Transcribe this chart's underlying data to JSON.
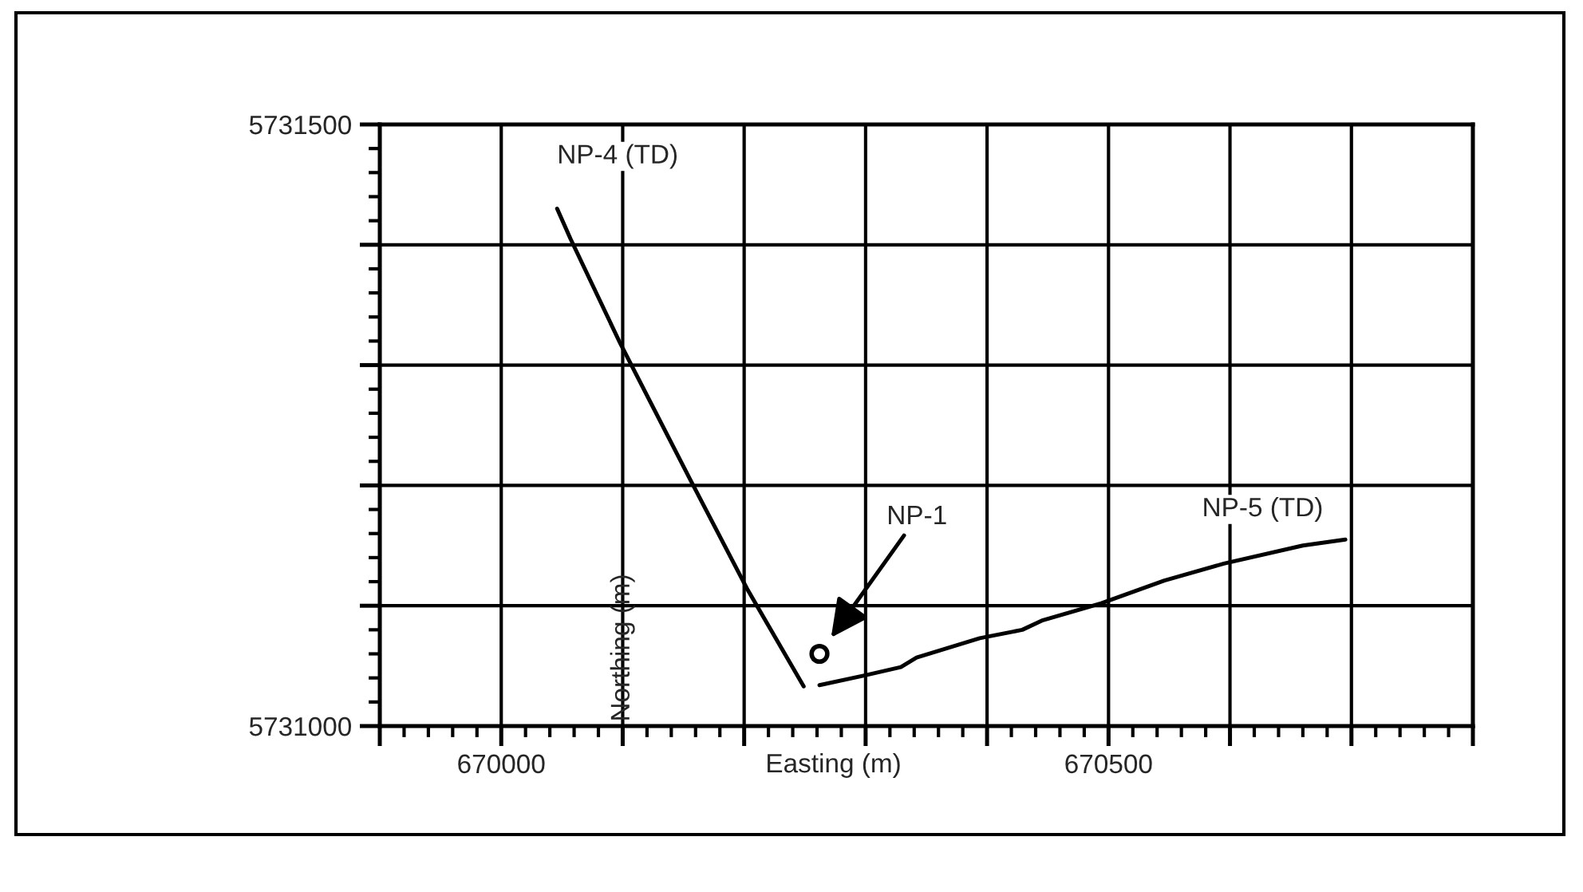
{
  "chart_data": {
    "type": "line",
    "xlabel": "Easting (m)",
    "ylabel": "Northing (m)",
    "series": [
      {
        "name": "NP-4 (TD)",
        "color": "#000000",
        "x": [
          670046,
          670057,
          670098,
          670155,
          670203,
          670249
        ],
        "values": [
          5731430,
          5731405,
          5731318,
          5731206,
          5731113,
          5731033
        ]
      },
      {
        "name": "NP-5 (TD)",
        "color": "#000000",
        "x": [
          670262,
          670299,
          670329,
          670342,
          670394,
          670429,
          670446,
          670494,
          670546,
          670595,
          670660,
          670695
        ],
        "values": [
          5731034,
          5731042,
          5731049,
          5731057,
          5731073,
          5731080,
          5731088,
          5731102,
          5731121,
          5731135,
          5731150,
          5731155
        ]
      },
      {
        "name": "NP-1",
        "type": "scatter",
        "marker": "circle",
        "color": "#000000",
        "x": [
          670262
        ],
        "values": [
          5731060
        ]
      }
    ],
    "xlim": [
      669900,
      670800
    ],
    "xticks": [
      {
        "value": 669900,
        "label": null
      },
      670000,
      {
        "value": 670100,
        "label": null
      },
      {
        "value": 670200,
        "label": null
      },
      {
        "value": 670300,
        "label": null
      },
      {
        "value": 670400,
        "label": null
      },
      670500,
      {
        "value": 670600,
        "label": null
      },
      {
        "value": 670700,
        "label": null
      },
      {
        "value": 670800,
        "label": null
      }
    ],
    "ylim": [
      5731000,
      5731500
    ],
    "yticks": [
      5731000,
      {
        "value": 5731100,
        "label": null
      },
      {
        "value": 5731200,
        "label": null
      },
      {
        "value": 5731300,
        "label": null
      },
      {
        "value": 5731400,
        "label": null
      },
      5731500
    ],
    "grid": true,
    "legend": false,
    "line_style": "solid"
  }
}
